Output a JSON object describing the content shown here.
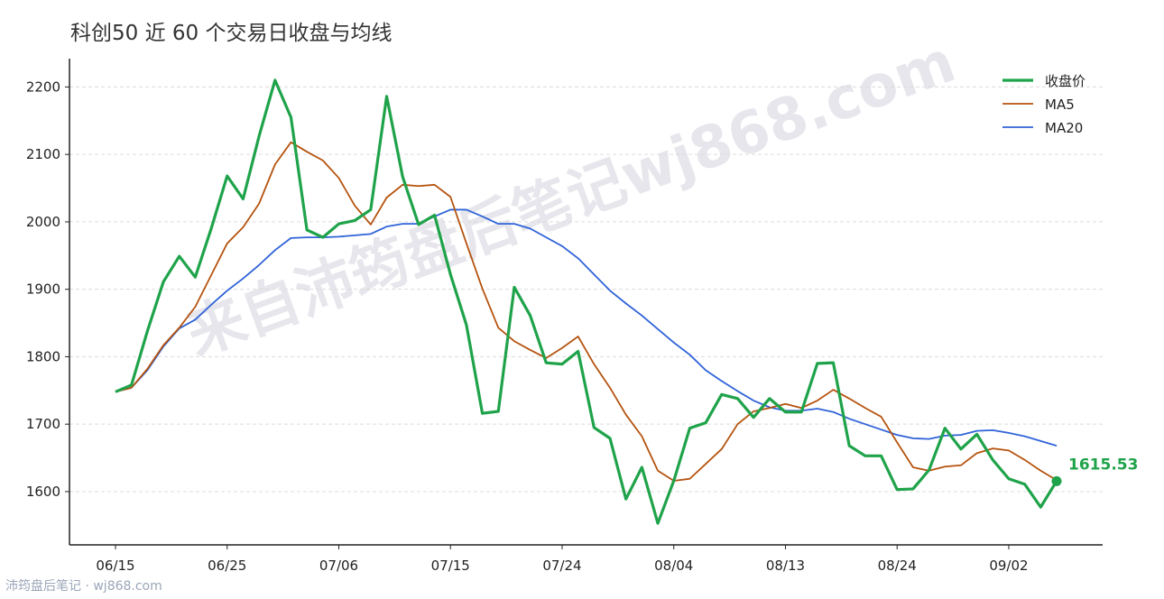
{
  "chart_data": {
    "type": "line",
    "title": "科创50 近 60 个交易日收盘与均线",
    "watermark": "来自沛筠盘后笔记wj868.com",
    "footer": "沛筠盘后笔记 · wj868.com",
    "categories": [
      "06/15",
      null,
      null,
      null,
      null,
      null,
      null,
      "06/25",
      null,
      null,
      null,
      null,
      null,
      null,
      "07/06",
      null,
      null,
      null,
      null,
      null,
      null,
      "07/15",
      null,
      null,
      null,
      null,
      null,
      null,
      "07/24",
      null,
      null,
      null,
      null,
      null,
      null,
      "08/04",
      null,
      null,
      null,
      null,
      null,
      null,
      "08/13",
      null,
      null,
      null,
      null,
      null,
      null,
      "08/24",
      null,
      null,
      null,
      null,
      null,
      null,
      "09/02",
      null,
      null,
      null
    ],
    "series": [
      {
        "name": "收盘价",
        "color": "#1fa34a",
        "width": 3.2,
        "values": [
          1748,
          1758,
          1838,
          1911,
          1949,
          1918,
          1990,
          2068,
          2034,
          2127,
          2210,
          2155,
          1988,
          1977,
          1997,
          2002,
          2018,
          2186,
          2067,
          1996,
          2010,
          1922,
          1847,
          1716,
          1719,
          1903,
          1861,
          1791,
          1789,
          1808,
          1695,
          1679,
          1589,
          1636,
          1553,
          1616,
          1694,
          1702,
          1744,
          1738,
          1710,
          1738,
          1718,
          1718,
          1790,
          1791,
          1668,
          1653,
          1653,
          1603,
          1604,
          1632,
          1694,
          1663,
          1685,
          1647,
          1619,
          1611,
          1577,
          1615.53
        ]
      },
      {
        "name": "MA5",
        "color": "#b5530f",
        "width": 1.8,
        "values": [
          1748,
          1754,
          1782,
          1817,
          1843,
          1874,
          1921,
          1968,
          1992,
          2027,
          2085,
          2118,
          2104,
          2091,
          2065,
          2024,
          1996,
          2036,
          2055,
          2053,
          2055,
          2037,
          1968,
          1901,
          1843,
          1823,
          1810,
          1798,
          1813,
          1830,
          1789,
          1754,
          1714,
          1682,
          1631,
          1616,
          1619,
          1641,
          1663,
          1700,
          1719,
          1724,
          1730,
          1724,
          1735,
          1751,
          1738,
          1724,
          1711,
          1673,
          1636,
          1631,
          1637,
          1639,
          1657,
          1664,
          1661,
          1647,
          1631,
          1617
        ]
      },
      {
        "name": "MA20",
        "color": "#2f63d8",
        "width": 1.8,
        "values": [
          1748,
          1754,
          1780,
          1815,
          1842,
          1855,
          1877,
          1898,
          1916,
          1936,
          1958,
          1976,
          1977,
          1977,
          1978,
          1980,
          1982,
          1993,
          1997,
          1997,
          2008,
          2018,
          2018,
          2008,
          1997,
          1997,
          1990,
          1977,
          1964,
          1946,
          1922,
          1898,
          1879,
          1861,
          1841,
          1821,
          1803,
          1780,
          1764,
          1749,
          1735,
          1725,
          1720,
          1720,
          1723,
          1718,
          1708,
          1700,
          1692,
          1684,
          1679,
          1678,
          1683,
          1684,
          1690,
          1691,
          1687,
          1682,
          1675,
          1668
        ]
      }
    ],
    "ylim": [
      1521,
      2242
    ],
    "yticks": [
      1600,
      1700,
      1800,
      1900,
      2000,
      2100,
      2200
    ],
    "grid": true,
    "legend": "upper right"
  }
}
